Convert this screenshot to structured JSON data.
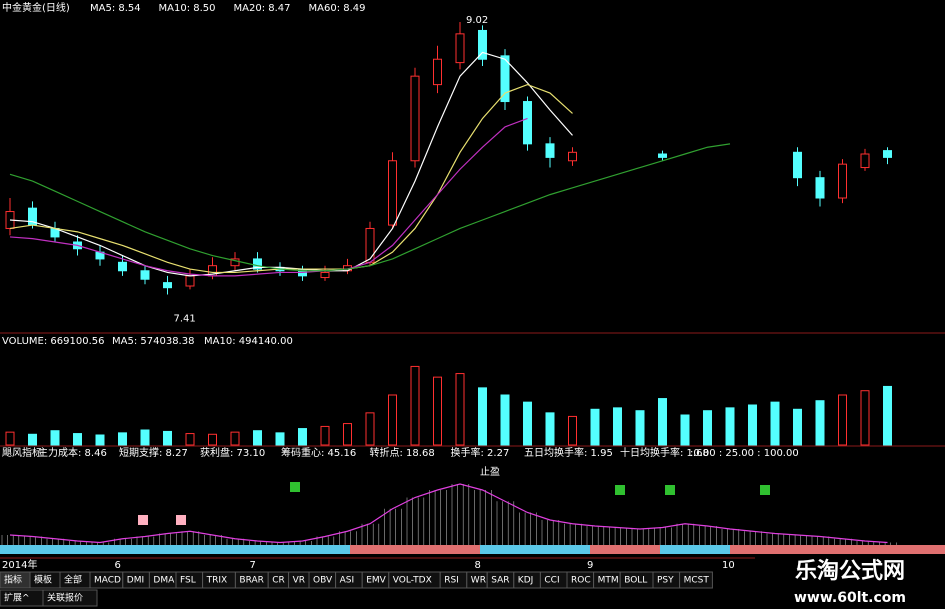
{
  "price_panel": {
    "title": "中金黄金(日线)",
    "ma_lines": [
      {
        "label": "MA5: 8.54",
        "label_color": "#ffffff",
        "color": "#ffffff",
        "values": [
          7.85,
          7.84,
          7.8,
          7.75,
          7.7,
          7.64,
          7.58,
          7.54,
          7.52,
          7.53,
          7.55,
          7.57,
          7.57,
          7.56,
          7.55,
          7.55,
          7.62,
          7.8,
          8.08,
          8.4,
          8.7,
          8.84,
          8.8,
          8.66,
          8.5,
          8.35,
          null,
          null,
          null,
          null,
          null,
          null,
          null,
          null,
          null,
          null,
          null,
          null,
          null,
          null
        ]
      },
      {
        "label": "MA10: 8.50",
        "label_color": "#ffffff",
        "color": "#e8e070",
        "values": [
          7.8,
          7.82,
          7.8,
          7.78,
          7.74,
          7.7,
          7.65,
          7.6,
          7.56,
          7.54,
          7.54,
          7.55,
          7.56,
          7.56,
          7.56,
          7.56,
          7.58,
          7.66,
          7.8,
          8.0,
          8.25,
          8.45,
          8.6,
          8.65,
          8.6,
          8.48,
          null,
          null,
          null,
          null,
          null,
          null,
          null,
          null,
          null,
          null,
          null,
          null,
          null,
          null
        ]
      },
      {
        "label": "MA20: 8.47",
        "label_color": "#d040d0",
        "color": "#c030c0",
        "values": [
          7.75,
          7.74,
          7.72,
          7.7,
          7.66,
          7.62,
          7.58,
          7.55,
          7.53,
          7.52,
          7.52,
          7.53,
          7.54,
          7.54,
          7.55,
          7.56,
          7.6,
          7.7,
          7.85,
          8.0,
          8.15,
          8.28,
          8.4,
          8.45,
          null,
          null,
          null,
          null,
          null,
          null,
          null,
          null,
          null,
          null,
          null,
          null,
          null,
          null,
          null,
          null
        ]
      },
      {
        "label": "MA60: 8.49",
        "label_color": "#30c030",
        "color": "#30a030",
        "values": [
          8.12,
          8.08,
          8.02,
          7.96,
          7.9,
          7.84,
          7.78,
          7.73,
          7.68,
          7.64,
          7.61,
          7.58,
          7.56,
          7.55,
          7.55,
          7.56,
          7.58,
          7.62,
          7.68,
          7.74,
          7.8,
          7.85,
          7.9,
          7.95,
          8.0,
          8.04,
          8.08,
          8.12,
          8.16,
          8.2,
          8.24,
          8.28,
          8.3,
          null,
          null,
          null,
          null,
          null,
          null,
          null
        ]
      }
    ],
    "ylim": [
      7.2,
      9.15
    ],
    "up_color": "#ff3030",
    "down_color": "#54ffff",
    "candles": {
      "open": [
        7.8,
        7.92,
        7.8,
        7.72,
        7.66,
        7.6,
        7.55,
        7.48,
        7.46,
        7.52,
        7.58,
        7.62,
        7.57,
        7.56,
        7.51,
        7.55,
        7.6,
        7.82,
        8.2,
        8.65,
        8.78,
        8.97,
        8.82,
        8.55,
        8.3,
        8.2,
        null,
        null,
        null,
        8.24,
        null,
        null,
        null,
        null,
        null,
        8.25,
        8.1,
        7.98,
        8.16,
        8.26
      ],
      "close": [
        7.9,
        7.82,
        7.75,
        7.68,
        7.62,
        7.55,
        7.5,
        7.45,
        7.52,
        7.58,
        7.62,
        7.56,
        7.55,
        7.52,
        7.54,
        7.58,
        7.8,
        8.2,
        8.7,
        8.8,
        8.95,
        8.8,
        8.55,
        8.3,
        8.22,
        8.25,
        null,
        null,
        null,
        8.22,
        null,
        null,
        null,
        null,
        null,
        8.1,
        7.98,
        8.18,
        8.24,
        8.22
      ],
      "high": [
        7.98,
        7.96,
        7.84,
        7.76,
        7.7,
        7.64,
        7.58,
        7.52,
        7.56,
        7.63,
        7.66,
        7.66,
        7.6,
        7.58,
        7.58,
        7.62,
        7.84,
        8.25,
        8.75,
        8.88,
        9.02,
        9.0,
        8.86,
        8.58,
        8.34,
        8.28,
        null,
        null,
        null,
        8.26,
        null,
        null,
        null,
        null,
        null,
        8.28,
        8.14,
        8.21,
        8.27,
        8.28
      ],
      "low": [
        7.76,
        7.8,
        7.72,
        7.64,
        7.58,
        7.52,
        7.47,
        7.41,
        7.44,
        7.5,
        7.55,
        7.54,
        7.52,
        7.49,
        7.49,
        7.53,
        7.58,
        7.8,
        8.16,
        8.6,
        8.74,
        8.76,
        8.5,
        8.26,
        8.16,
        8.17,
        null,
        null,
        null,
        8.2,
        null,
        null,
        null,
        null,
        null,
        8.05,
        7.93,
        7.95,
        8.14,
        8.18
      ]
    },
    "high_label": {
      "index": 20,
      "text": "9.02"
    },
    "low_label": {
      "index": 7,
      "text": "7.41"
    }
  },
  "volume_panel": {
    "header": [
      "VOLUME: 669100.56",
      "MA5: 574038.38",
      "MA10: 494140.00"
    ],
    "ylim": [
      0,
      1400000
    ],
    "values": [
      180000,
      150000,
      200000,
      160000,
      140000,
      170000,
      210000,
      190000,
      160000,
      150000,
      180000,
      200000,
      170000,
      230000,
      260000,
      300000,
      450000,
      700000,
      1100000,
      950000,
      1000000,
      800000,
      700000,
      600000,
      450000,
      400000,
      500000,
      520000,
      480000,
      650000,
      420000,
      480000,
      520000,
      560000,
      600000,
      500000,
      620000,
      700000,
      760000,
      820000
    ]
  },
  "indicator_panel": {
    "header": [
      {
        "text": "飓风指标",
        "color": "#ffffff"
      },
      {
        "text": "主力成本: 8.46",
        "color": "#ffffff"
      },
      {
        "text": "短期支撑: 8.27",
        "color": "#ffffff"
      },
      {
        "text": "获利盘: 73.10",
        "color": "#ffffff"
      },
      {
        "text": "筹码重心: 45.16",
        "color": "#ffffff"
      },
      {
        "text": "转折点: 18.68",
        "color": "#d040d0"
      },
      {
        "text": "换手率: 2.27",
        "color": "#ffffff"
      },
      {
        "text": "五日均换手率: 1.95",
        "color": "#ffffff"
      },
      {
        "text": "十日均换手率: 1.68",
        "color": "#ffffff"
      }
    ],
    "scale_label": ":0.00 : 25.00 : 100.00",
    "signal_label": "止盈",
    "ylim": [
      0,
      100
    ],
    "values": [
      20,
      18,
      15,
      12,
      10,
      15,
      18,
      22,
      25,
      20,
      15,
      12,
      10,
      12,
      18,
      25,
      35,
      55,
      70,
      80,
      88,
      80,
      65,
      50,
      40,
      35,
      32,
      30,
      28,
      30,
      35,
      32,
      28,
      25,
      22,
      20,
      18,
      15,
      12,
      10
    ]
  },
  "date_axis": [
    {
      "index": 0,
      "label": "2014年"
    },
    {
      "index": 5,
      "label": "6"
    },
    {
      "index": 11,
      "label": "7"
    },
    {
      "index": 21,
      "label": "8"
    },
    {
      "index": 26,
      "label": "9"
    },
    {
      "index": 32,
      "label": "10"
    }
  ],
  "tabs": [
    "指标",
    "模板",
    "全部",
    "MACD",
    "DMI",
    "DMA",
    "FSL",
    "TRIX",
    "BRAR",
    "CR",
    "VR",
    "OBV",
    "ASI",
    "EMV",
    "VOL-TDX",
    "RSI",
    "WR",
    "SAR",
    "KDJ",
    "CCI",
    "ROC",
    "MTM",
    "BOLL",
    "PSY",
    "MCST"
  ],
  "bottom_tabs": [
    "扩展^",
    "关联报价"
  ],
  "watermark": {
    "title": "乐淘公式网",
    "url": "www.60lt.com"
  }
}
